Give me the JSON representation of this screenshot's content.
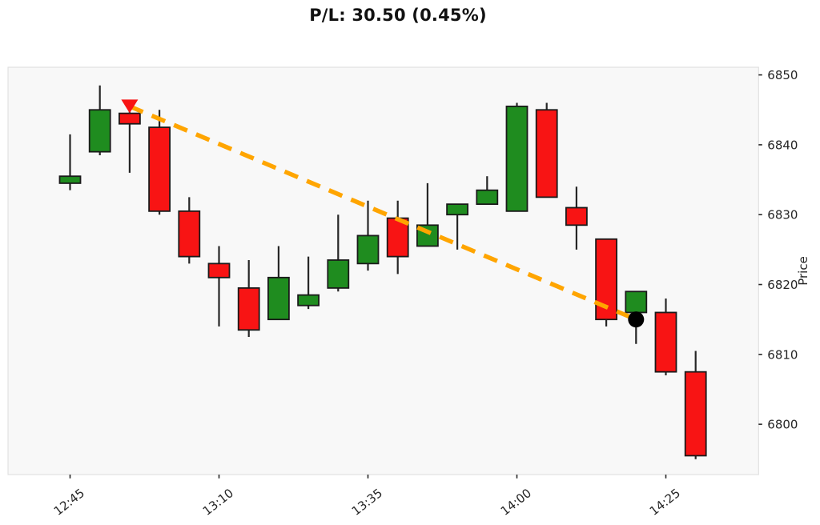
{
  "title": {
    "text": "P/L: 30.50 (0.45%)"
  },
  "chart_data": {
    "type": "candlestick",
    "title": "P/L: 30.50 (0.45%)",
    "ylabel": "Price",
    "grid": false,
    "legend": null,
    "candle_interval_minutes": 5,
    "ylim": [
      6792.8,
      6851.1
    ],
    "y_ticks": [
      6850,
      6840,
      6830,
      6820,
      6810,
      6800
    ],
    "x_tick_labels": [
      "12:45",
      "13:10",
      "13:35",
      "14:00",
      "14:25"
    ],
    "candles": [
      {
        "time": "12:45",
        "open": 6834.5,
        "high": 6841.5,
        "low": 6833.5,
        "close": 6835.5
      },
      {
        "time": "12:50",
        "open": 6839.0,
        "high": 6848.5,
        "low": 6838.5,
        "close": 6845.0
      },
      {
        "time": "12:55",
        "open": 6844.5,
        "high": 6845.0,
        "low": 6836.0,
        "close": 6843.0
      },
      {
        "time": "13:00",
        "open": 6842.5,
        "high": 6845.0,
        "low": 6830.0,
        "close": 6830.5
      },
      {
        "time": "13:05",
        "open": 6830.5,
        "high": 6832.5,
        "low": 6823.0,
        "close": 6824.0
      },
      {
        "time": "13:10",
        "open": 6823.0,
        "high": 6825.5,
        "low": 6814.0,
        "close": 6821.0
      },
      {
        "time": "13:15",
        "open": 6819.5,
        "high": 6823.5,
        "low": 6812.5,
        "close": 6813.5
      },
      {
        "time": "13:20",
        "open": 6815.0,
        "high": 6825.5,
        "low": 6815.0,
        "close": 6821.0
      },
      {
        "time": "13:25",
        "open": 6817.0,
        "high": 6824.0,
        "low": 6816.5,
        "close": 6818.5
      },
      {
        "time": "13:30",
        "open": 6819.5,
        "high": 6830.0,
        "low": 6819.0,
        "close": 6823.5
      },
      {
        "time": "13:35",
        "open": 6823.0,
        "high": 6832.0,
        "low": 6822.0,
        "close": 6827.0
      },
      {
        "time": "13:40",
        "open": 6829.5,
        "high": 6832.0,
        "low": 6821.5,
        "close": 6824.0
      },
      {
        "time": "13:45",
        "open": 6825.5,
        "high": 6834.5,
        "low": 6825.5,
        "close": 6828.5
      },
      {
        "time": "13:50",
        "open": 6830.0,
        "high": 6831.5,
        "low": 6825.0,
        "close": 6831.5
      },
      {
        "time": "13:55",
        "open": 6831.5,
        "high": 6835.5,
        "low": 6831.5,
        "close": 6833.5
      },
      {
        "time": "14:00",
        "open": 6830.5,
        "high": 6846.0,
        "low": 6830.5,
        "close": 6845.5
      },
      {
        "time": "14:05",
        "open": 6845.0,
        "high": 6846.0,
        "low": 6832.5,
        "close": 6832.5
      },
      {
        "time": "14:10",
        "open": 6831.0,
        "high": 6834.0,
        "low": 6825.0,
        "close": 6828.5
      },
      {
        "time": "14:15",
        "open": 6826.5,
        "high": 6826.5,
        "low": 6814.0,
        "close": 6815.0
      },
      {
        "time": "14:20",
        "open": 6816.0,
        "high": 6819.0,
        "low": 6811.5,
        "close": 6819.0
      },
      {
        "time": "14:25",
        "open": 6816.0,
        "high": 6818.0,
        "low": 6807.0,
        "close": 6807.5
      },
      {
        "time": "14:30",
        "open": 6807.5,
        "high": 6810.5,
        "low": 6795.0,
        "close": 6795.5
      }
    ],
    "trade": {
      "pl": 30.5,
      "pl_pct": 0.45,
      "entry": {
        "time": "12:55",
        "price": 6845.5,
        "marker": "triangle-down",
        "color": "#f81414"
      },
      "exit": {
        "time": "14:20",
        "price": 6815.0,
        "marker": "circle",
        "color": "#000000"
      },
      "trend_line": {
        "from": "entry",
        "to": "exit",
        "style": "dashed",
        "color": "#ffa500"
      }
    },
    "colors": {
      "up": "#1f8c1f",
      "down": "#f81414",
      "edge": "#1a1a1a",
      "wick": "#262626",
      "plot_bg": "#f8f8f8",
      "plot_border": "#dcdcdc",
      "tick_text": "#262626",
      "title_text": "#111111",
      "trend": "#ffa500"
    }
  }
}
